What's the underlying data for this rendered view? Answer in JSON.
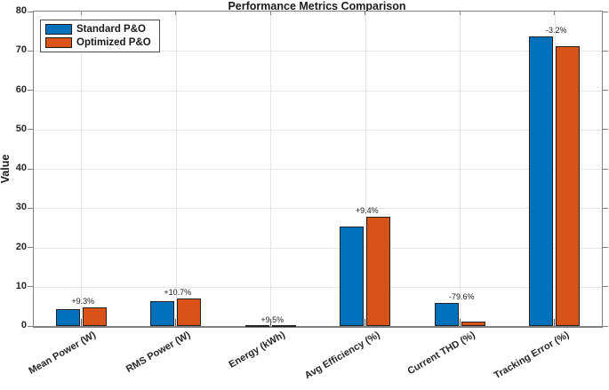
{
  "figure": {
    "title": "Performance Metrics Comparison"
  },
  "chart_data": {
    "type": "bar",
    "title": "Performance Metrics Comparison",
    "xlabel": "",
    "ylabel": "Value",
    "ylim": [
      0,
      80
    ],
    "yticks": [
      0,
      10,
      20,
      30,
      40,
      50,
      60,
      70,
      80
    ],
    "grid": true,
    "legend_position": "top-left",
    "categories": [
      "Mean Power (W)",
      "RMS Power (W)",
      "Energy (kWh)",
      "Avg Efficiency (%)",
      "Current THD (%)",
      "Tracking Error (%)"
    ],
    "series": [
      {
        "name": "Standard P&O",
        "color": "#0072BD",
        "values": [
          4.4,
          6.4,
          0.05,
          25.4,
          5.9,
          73.6
        ]
      },
      {
        "name": "Optimized P&O",
        "color": "#D95319",
        "values": [
          4.8,
          7.1,
          0.055,
          27.8,
          1.2,
          71.2
        ]
      }
    ],
    "annotations": [
      "+9.3%",
      "+10.7%",
      "+9.5%",
      "+9.4%",
      "-79.6%",
      "-3.2%"
    ],
    "bar_edge_color": "#212121",
    "grid_color": "#e6e6e6",
    "axis_color": "#808080"
  }
}
